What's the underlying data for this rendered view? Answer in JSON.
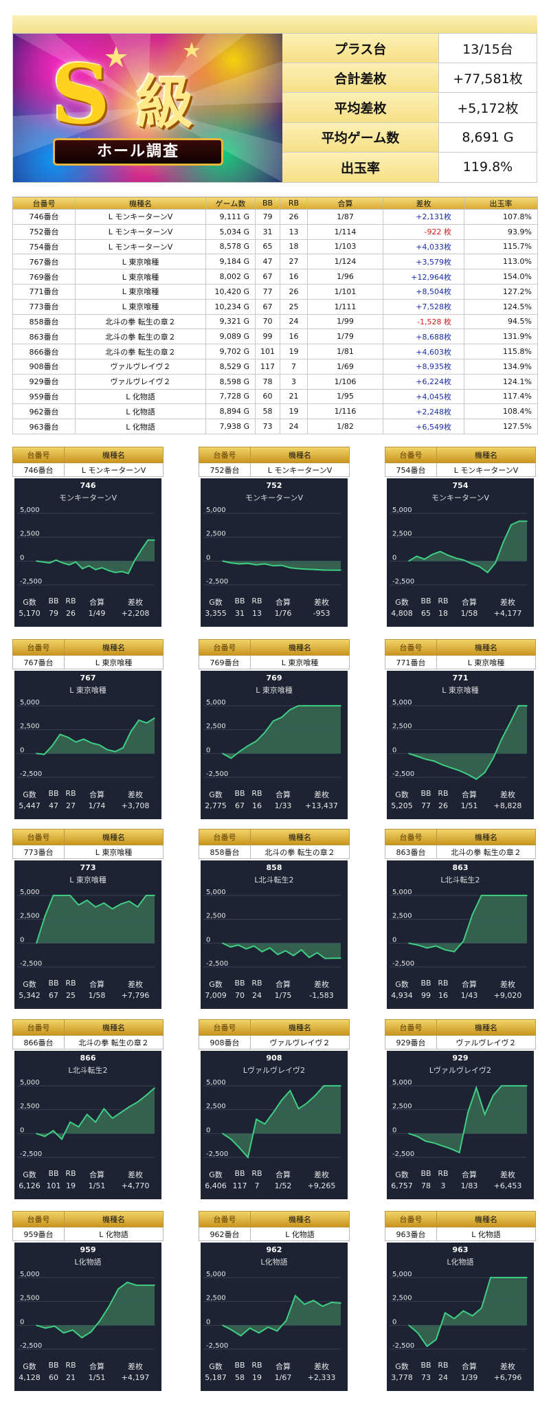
{
  "summary": {
    "logo_big": "S",
    "logo_kanji": "級",
    "logo_ribbon": "ホール調査",
    "rows": [
      {
        "label": "プラス台",
        "value": "13/15台"
      },
      {
        "label": "合計差枚",
        "value": "+77,581枚"
      },
      {
        "label": "平均差枚",
        "value": "+5,172枚"
      },
      {
        "label": "平均ゲーム数",
        "value": "8,691 G"
      },
      {
        "label": "出玉率",
        "value": "119.8%"
      }
    ]
  },
  "table": {
    "headers": [
      "台番号",
      "機種名",
      "ゲーム数",
      "BB",
      "RB",
      "合算",
      "差枚",
      "出玉率"
    ],
    "rows": [
      [
        "746番台",
        "L モンキーターンV",
        "9,111 G",
        "79",
        "26",
        "1/87",
        "+2,131枚",
        "107.8%"
      ],
      [
        "752番台",
        "L モンキーターンV",
        "5,034 G",
        "31",
        "13",
        "1/114",
        "-922 枚",
        "93.9%"
      ],
      [
        "754番台",
        "L モンキーターンV",
        "8,578 G",
        "65",
        "18",
        "1/103",
        "+4,033枚",
        "115.7%"
      ],
      [
        "767番台",
        "L 東京喰種",
        "9,184 G",
        "47",
        "27",
        "1/124",
        "+3,579枚",
        "113.0%"
      ],
      [
        "769番台",
        "L 東京喰種",
        "8,002 G",
        "67",
        "16",
        "1/96",
        "+12,964枚",
        "154.0%"
      ],
      [
        "771番台",
        "L 東京喰種",
        "10,420 G",
        "77",
        "26",
        "1/101",
        "+8,504枚",
        "127.2%"
      ],
      [
        "773番台",
        "L 東京喰種",
        "10,234 G",
        "67",
        "25",
        "1/111",
        "+7,528枚",
        "124.5%"
      ],
      [
        "858番台",
        "北斗の拳 転生の章２",
        "9,321 G",
        "70",
        "24",
        "1/99",
        "-1,528 枚",
        "94.5%"
      ],
      [
        "863番台",
        "北斗の拳 転生の章２",
        "9,089 G",
        "99",
        "16",
        "1/79",
        "+8,688枚",
        "131.9%"
      ],
      [
        "866番台",
        "北斗の拳 転生の章２",
        "9,702 G",
        "101",
        "19",
        "1/81",
        "+4,603枚",
        "115.8%"
      ],
      [
        "908番台",
        "ヴァルヴレイヴ２",
        "8,529 G",
        "117",
        "7",
        "1/69",
        "+8,935枚",
        "134.9%"
      ],
      [
        "929番台",
        "ヴァルヴレイヴ２",
        "8,598 G",
        "78",
        "3",
        "1/106",
        "+6,224枚",
        "124.1%"
      ],
      [
        "959番台",
        "L 化物語",
        "7,728 G",
        "60",
        "21",
        "1/95",
        "+4,045枚",
        "117.4%"
      ],
      [
        "962番台",
        "L 化物語",
        "8,894 G",
        "58",
        "19",
        "1/116",
        "+2,248枚",
        "108.4%"
      ],
      [
        "963番台",
        "L 化物語",
        "7,938 G",
        "73",
        "24",
        "1/82",
        "+6,549枚",
        "127.5%"
      ]
    ]
  },
  "card_labels": {
    "head_no": "台番号",
    "head_name": "機種名",
    "stat_headers": [
      "G数",
      "BB",
      "RB",
      "合算",
      "差枚"
    ],
    "y_ticks": [
      "5,000",
      "2,500",
      "0",
      "-2,500"
    ]
  },
  "chart_data": [
    {
      "type": "line",
      "machine_no": "746",
      "tag": "746番台",
      "machine": "L モンキーターンV",
      "model": "モンキーターンV",
      "stats": [
        "5,170",
        "79",
        "26",
        "1/49",
        "+2,208"
      ],
      "ylim": [
        -3000,
        5500
      ],
      "y_ticks": [
        5000,
        2500,
        0,
        -2500
      ],
      "values": [
        0,
        -100,
        -200,
        100,
        -200,
        -400,
        -100,
        -800,
        -500,
        -900,
        -700,
        -1000,
        -1200,
        -1100,
        -1300,
        100,
        1200,
        2208,
        2208
      ]
    },
    {
      "type": "line",
      "machine_no": "752",
      "tag": "752番台",
      "machine": "L モンキーターンV",
      "model": "モンキーターンV",
      "stats": [
        "3,355",
        "31",
        "13",
        "1/76",
        "-953"
      ],
      "ylim": [
        -3000,
        5500
      ],
      "y_ticks": [
        5000,
        2500,
        0,
        -2500
      ],
      "values": [
        0,
        -200,
        -300,
        -250,
        -400,
        -300,
        -500,
        -450,
        -700,
        -800,
        -850,
        -900,
        -950,
        -953,
        -953
      ]
    },
    {
      "type": "line",
      "machine_no": "754",
      "tag": "754番台",
      "machine": "L モンキーターンV",
      "model": "モンキーターンV",
      "stats": [
        "4,808",
        "65",
        "18",
        "1/58",
        "+4,177"
      ],
      "ylim": [
        -3000,
        5500
      ],
      "y_ticks": [
        5000,
        2500,
        0,
        -2500
      ],
      "values": [
        0,
        500,
        200,
        700,
        1000,
        600,
        300,
        100,
        -300,
        -600,
        -1200,
        -200,
        2000,
        3800,
        4177,
        4177
      ]
    },
    {
      "type": "line",
      "machine_no": "767",
      "tag": "767番台",
      "machine": "L 東京喰種",
      "model": "L 東京喰種",
      "stats": [
        "5,447",
        "47",
        "27",
        "1/74",
        "+3,708"
      ],
      "ylim": [
        -3000,
        5500
      ],
      "y_ticks": [
        5000,
        2500,
        0,
        -2500
      ],
      "values": [
        0,
        -100,
        800,
        2000,
        1700,
        1200,
        1500,
        1100,
        900,
        400,
        200,
        600,
        2300,
        3500,
        3200,
        3708
      ]
    },
    {
      "type": "line",
      "machine_no": "769",
      "tag": "769番台",
      "machine": "L 東京喰種",
      "model": "L 東京喰種",
      "stats": [
        "2,775",
        "67",
        "16",
        "1/33",
        "+13,437"
      ],
      "ylim": [
        -3000,
        5500
      ],
      "y_ticks": [
        5000,
        2500,
        0,
        -2500
      ],
      "values": [
        0,
        -500,
        200,
        800,
        1300,
        2200,
        3400,
        3800,
        4600,
        5000,
        5000,
        5000,
        5000,
        5000,
        5000
      ]
    },
    {
      "type": "line",
      "machine_no": "771",
      "tag": "771番台",
      "machine": "L 東京喰種",
      "model": "L 東京喰種",
      "stats": [
        "5,205",
        "77",
        "26",
        "1/51",
        "+8,828"
      ],
      "ylim": [
        -3000,
        5500
      ],
      "y_ticks": [
        5000,
        2500,
        0,
        -2500
      ],
      "values": [
        0,
        -300,
        -600,
        -800,
        -1200,
        -1500,
        -1800,
        -2200,
        -2700,
        -2000,
        -500,
        1500,
        3200,
        5000,
        5000
      ]
    },
    {
      "type": "line",
      "machine_no": "773",
      "tag": "773番台",
      "machine": "L 東京喰種",
      "model": "L 東京喰種",
      "stats": [
        "5,342",
        "67",
        "25",
        "1/58",
        "+7,796"
      ],
      "ylim": [
        -3000,
        5500
      ],
      "y_ticks": [
        5000,
        2500,
        0,
        -2500
      ],
      "values": [
        0,
        2800,
        5000,
        5000,
        5000,
        4000,
        4500,
        3800,
        4200,
        3600,
        4100,
        4400,
        3800,
        5000,
        5000
      ]
    },
    {
      "type": "line",
      "machine_no": "858",
      "tag": "858番台",
      "machine": "北斗の拳 転生の章２",
      "model": "L北斗転生2",
      "stats": [
        "7,009",
        "70",
        "24",
        "1/75",
        "-1,583"
      ],
      "ylim": [
        -3000,
        5500
      ],
      "y_ticks": [
        5000,
        2500,
        0,
        -2500
      ],
      "values": [
        0,
        -400,
        -200,
        -600,
        -300,
        -900,
        -500,
        -1200,
        -800,
        -1300,
        -700,
        -1500,
        -1000,
        -1600,
        -1583,
        -1583
      ]
    },
    {
      "type": "line",
      "machine_no": "863",
      "tag": "863番台",
      "machine": "北斗の拳 転生の章２",
      "model": "L北斗転生2",
      "stats": [
        "4,934",
        "99",
        "16",
        "1/43",
        "+9,020"
      ],
      "ylim": [
        -3000,
        5500
      ],
      "y_ticks": [
        5000,
        2500,
        0,
        -2500
      ],
      "values": [
        0,
        -200,
        -500,
        -300,
        -700,
        -900,
        200,
        3000,
        5000,
        5000,
        5000,
        5000,
        5000,
        5000
      ]
    },
    {
      "type": "line",
      "machine_no": "866",
      "tag": "866番台",
      "machine": "北斗の拳 転生の章２",
      "model": "L北斗転生2",
      "stats": [
        "6,126",
        "101",
        "19",
        "1/51",
        "+4,770"
      ],
      "ylim": [
        -3000,
        5500
      ],
      "y_ticks": [
        5000,
        2500,
        0,
        -2500
      ],
      "values": [
        0,
        -300,
        300,
        -600,
        1200,
        700,
        2000,
        1200,
        2600,
        1600,
        2200,
        2800,
        3300,
        4000,
        4770
      ]
    },
    {
      "type": "line",
      "machine_no": "908",
      "tag": "908番台",
      "machine": "ヴァルヴレイヴ２",
      "model": "Lヴァルヴレイヴ2",
      "stats": [
        "6,406",
        "117",
        "7",
        "1/52",
        "+9,265"
      ],
      "ylim": [
        -3000,
        5500
      ],
      "y_ticks": [
        5000,
        2500,
        0,
        -2500
      ],
      "values": [
        0,
        -600,
        -1500,
        -2500,
        1500,
        1000,
        2200,
        3500,
        4500,
        2600,
        3200,
        4000,
        5000,
        5000,
        5000
      ]
    },
    {
      "type": "line",
      "machine_no": "929",
      "tag": "929番台",
      "machine": "ヴァルヴレイヴ２",
      "model": "Lヴァルヴレイヴ2",
      "stats": [
        "6,757",
        "78",
        "3",
        "1/83",
        "+6,453"
      ],
      "ylim": [
        -3000,
        5500
      ],
      "y_ticks": [
        5000,
        2500,
        0,
        -2500
      ],
      "values": [
        0,
        -300,
        -800,
        -1000,
        -1300,
        -1600,
        -2000,
        2200,
        4800,
        2000,
        4000,
        5000,
        5000,
        5000,
        5000
      ]
    },
    {
      "type": "line",
      "machine_no": "959",
      "tag": "959番台",
      "machine": "L 化物語",
      "model": "L化物語",
      "stats": [
        "4,128",
        "60",
        "21",
        "1/51",
        "+4,197"
      ],
      "ylim": [
        -3000,
        5500
      ],
      "y_ticks": [
        5000,
        2500,
        0,
        -2500
      ],
      "values": [
        0,
        -300,
        -100,
        -800,
        -500,
        -1300,
        -700,
        500,
        2000,
        3800,
        4500,
        4197,
        4197,
        4197
      ]
    },
    {
      "type": "line",
      "machine_no": "962",
      "tag": "962番台",
      "machine": "L 化物語",
      "model": "L化物語",
      "stats": [
        "5,187",
        "58",
        "19",
        "1/67",
        "+2,333"
      ],
      "ylim": [
        -3000,
        5500
      ],
      "y_ticks": [
        5000,
        2500,
        0,
        -2500
      ],
      "values": [
        0,
        -500,
        -1100,
        -300,
        -800,
        -200,
        -600,
        500,
        3100,
        2200,
        2600,
        2000,
        2400,
        2333
      ]
    },
    {
      "type": "line",
      "machine_no": "963",
      "tag": "963番台",
      "machine": "L 化物語",
      "model": "L化物語",
      "stats": [
        "3,778",
        "73",
        "24",
        "1/39",
        "+6,796"
      ],
      "ylim": [
        -3000,
        5500
      ],
      "y_ticks": [
        5000,
        2500,
        0,
        -2500
      ],
      "values": [
        0,
        -800,
        -2200,
        -1500,
        1300,
        700,
        1500,
        1000,
        1800,
        5000,
        5000,
        5000,
        5000,
        5000
      ]
    }
  ],
  "colors": {
    "line": "#3fcf83",
    "fill": "#3a6a55",
    "panel": "#1d2333",
    "positive": "#1a2eb0",
    "negative": "#d41b1b"
  }
}
